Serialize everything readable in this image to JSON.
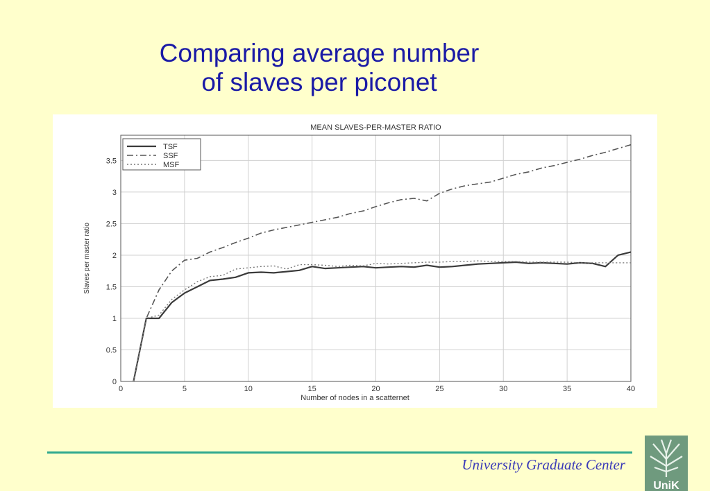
{
  "slide": {
    "title_line1": "Comparing average number",
    "title_line2": "of slaves per piconet",
    "footer": "University Graduate Center",
    "logo_text": "UniK"
  },
  "colors": {
    "background": "#ffffcc",
    "title": "#1a1aa6",
    "footer_rule": "#2ea88e",
    "footer_text": "#3a3ab8",
    "series_line": "#444444",
    "grid": "#d0d0d0"
  },
  "chart_data": {
    "type": "line",
    "title": "MEAN SLAVES-PER-MASTER RATIO",
    "xlabel": "Number of nodes in a scatternet",
    "ylabel": "Slaves per master ratio",
    "xlim": [
      0,
      40
    ],
    "ylim": [
      0,
      3.9
    ],
    "xticks": [
      0,
      5,
      10,
      15,
      20,
      25,
      30,
      35,
      40
    ],
    "yticks": [
      0,
      0.5,
      1,
      1.5,
      2,
      2.5,
      3,
      3.5
    ],
    "xtick_labels": [
      "0",
      "5",
      "10",
      "15",
      "20",
      "25",
      "30",
      "35",
      "40"
    ],
    "ytick_labels": [
      "0",
      "0.5",
      "1",
      "1.5",
      "2",
      "2.5",
      "3",
      "3.5"
    ],
    "grid": true,
    "legend_position": "top-left",
    "series": [
      {
        "name": "TSF",
        "style": "solid",
        "x": [
          1,
          2,
          3,
          4,
          5,
          6,
          7,
          8,
          9,
          10,
          11,
          12,
          13,
          14,
          15,
          16,
          17,
          18,
          19,
          20,
          21,
          22,
          23,
          24,
          25,
          26,
          27,
          28,
          29,
          30,
          31,
          32,
          33,
          34,
          35,
          36,
          37,
          38,
          39,
          40
        ],
        "y": [
          0,
          1.0,
          1.0,
          1.25,
          1.4,
          1.5,
          1.6,
          1.62,
          1.65,
          1.72,
          1.73,
          1.72,
          1.74,
          1.76,
          1.82,
          1.79,
          1.8,
          1.81,
          1.82,
          1.8,
          1.81,
          1.82,
          1.81,
          1.84,
          1.81,
          1.82,
          1.84,
          1.86,
          1.87,
          1.88,
          1.89,
          1.87,
          1.88,
          1.87,
          1.86,
          1.88,
          1.87,
          1.82,
          2.0,
          2.05
        ]
      },
      {
        "name": "SSF",
        "style": "dashed",
        "x": [
          1,
          2,
          3,
          4,
          5,
          6,
          7,
          8,
          9,
          10,
          11,
          12,
          13,
          14,
          15,
          16,
          17,
          18,
          19,
          20,
          21,
          22,
          23,
          24,
          25,
          26,
          27,
          28,
          29,
          30,
          31,
          32,
          33,
          34,
          35,
          36,
          37,
          38,
          39,
          40
        ],
        "y": [
          0,
          1.0,
          1.45,
          1.75,
          1.92,
          1.95,
          2.05,
          2.12,
          2.2,
          2.27,
          2.35,
          2.4,
          2.44,
          2.48,
          2.52,
          2.56,
          2.6,
          2.66,
          2.7,
          2.77,
          2.83,
          2.88,
          2.9,
          2.86,
          2.98,
          3.05,
          3.1,
          3.13,
          3.16,
          3.22,
          3.28,
          3.32,
          3.38,
          3.42,
          3.47,
          3.52,
          3.58,
          3.63,
          3.69,
          3.75
        ]
      },
      {
        "name": "MSF",
        "style": "dotted",
        "x": [
          1,
          2,
          3,
          4,
          5,
          6,
          7,
          8,
          9,
          10,
          11,
          12,
          13,
          14,
          15,
          16,
          17,
          18,
          19,
          20,
          21,
          22,
          23,
          24,
          25,
          26,
          27,
          28,
          29,
          30,
          31,
          32,
          33,
          34,
          35,
          36,
          37,
          38,
          39,
          40
        ],
        "y": [
          0,
          1.0,
          1.05,
          1.3,
          1.45,
          1.58,
          1.66,
          1.68,
          1.78,
          1.8,
          1.82,
          1.83,
          1.78,
          1.85,
          1.85,
          1.84,
          1.82,
          1.84,
          1.83,
          1.87,
          1.86,
          1.87,
          1.88,
          1.89,
          1.89,
          1.9,
          1.9,
          1.91,
          1.9,
          1.9,
          1.9,
          1.89,
          1.89,
          1.89,
          1.89,
          1.88,
          1.88,
          1.88,
          1.88,
          1.88
        ]
      }
    ]
  }
}
